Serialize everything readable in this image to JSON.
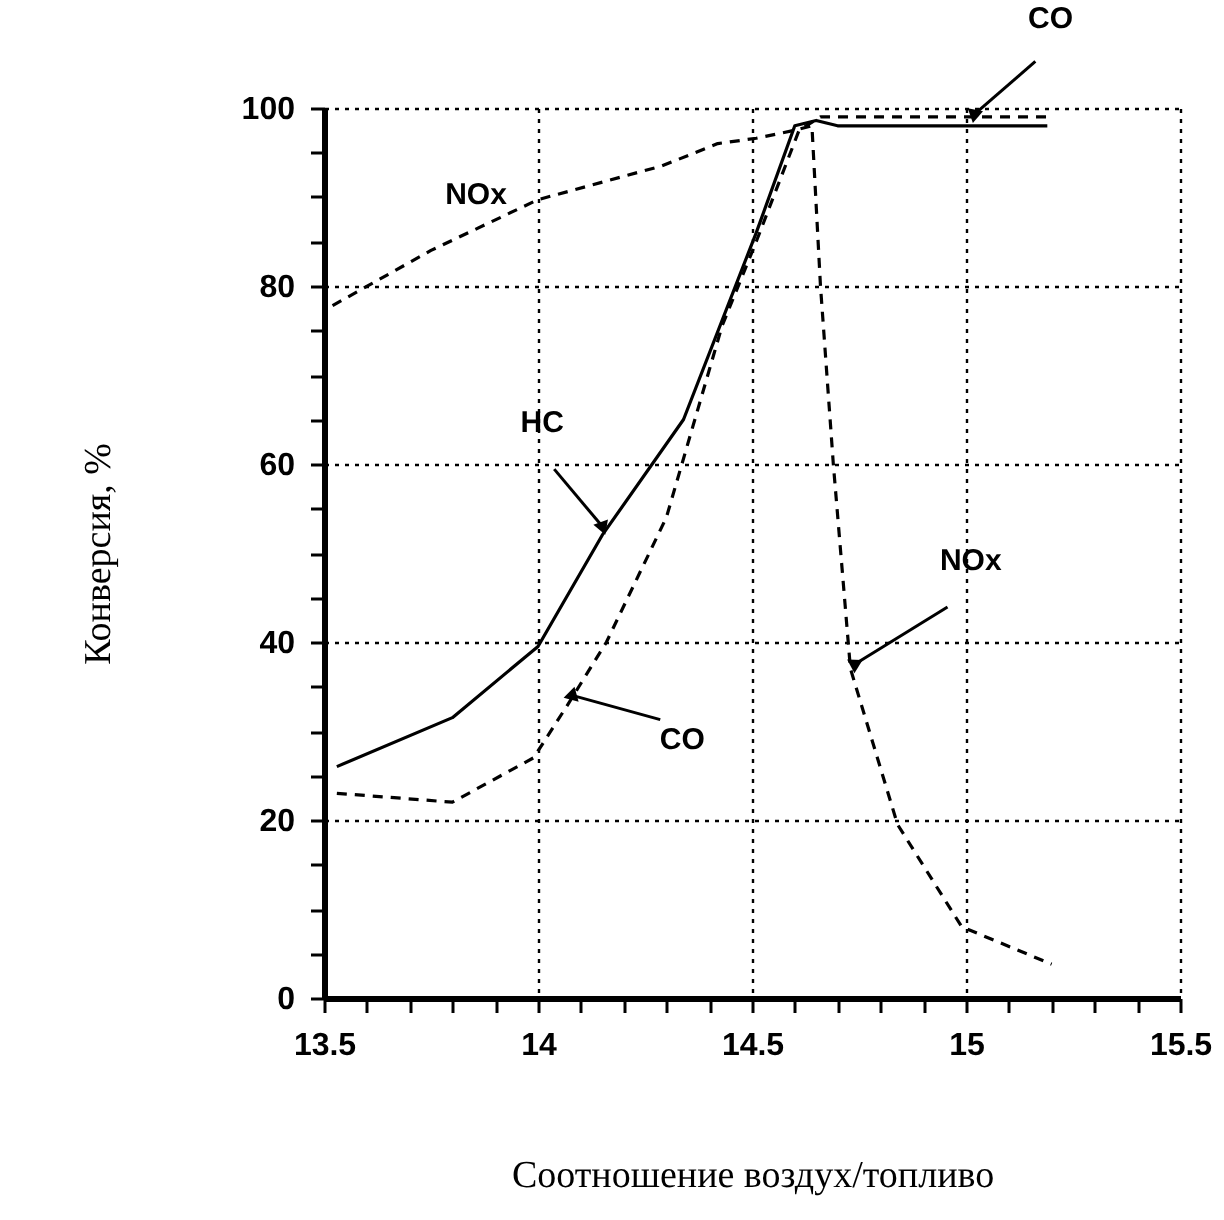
{
  "chart_data": {
    "type": "line",
    "xlabel": "Соотношение воздух/топливо",
    "ylabel": "Конверсия, %",
    "xlim": [
      13.5,
      15.5
    ],
    "ylim": [
      0,
      100
    ],
    "xticks": [
      {
        "value": 13.5,
        "label": "13.5"
      },
      {
        "value": 13.6,
        "label": null
      },
      {
        "value": 13.7,
        "label": null
      },
      {
        "value": 13.8,
        "label": null
      },
      {
        "value": 13.9,
        "label": null
      },
      {
        "value": 14,
        "label": "14"
      },
      {
        "value": 14.1,
        "label": null
      },
      {
        "value": 14.2,
        "label": null
      },
      {
        "value": 14.3,
        "label": null
      },
      {
        "value": 14.4,
        "label": null
      },
      {
        "value": 14.5,
        "label": "14.5"
      },
      {
        "value": 14.6,
        "label": null
      },
      {
        "value": 14.7,
        "label": null
      },
      {
        "value": 14.8,
        "label": null
      },
      {
        "value": 14.9,
        "label": null
      },
      {
        "value": 15,
        "label": "15"
      },
      {
        "value": 15.1,
        "label": null
      },
      {
        "value": 15.2,
        "label": null
      },
      {
        "value": 15.3,
        "label": null
      },
      {
        "value": 15.4,
        "label": null
      },
      {
        "value": 15.5,
        "label": "15.5"
      }
    ],
    "yticks": [
      0,
      {
        "value": 5,
        "label": null
      },
      {
        "value": 10,
        "label": null
      },
      {
        "value": 15,
        "label": null
      },
      20,
      {
        "value": 25,
        "label": null
      },
      {
        "value": 30,
        "label": null
      },
      {
        "value": 35,
        "label": null
      },
      40,
      {
        "value": 45,
        "label": null
      },
      {
        "value": 50,
        "label": null
      },
      {
        "value": 55,
        "label": null
      },
      60,
      {
        "value": 65,
        "label": null
      },
      {
        "value": 70,
        "label": null
      },
      {
        "value": 75,
        "label": null
      },
      80,
      {
        "value": 85,
        "label": null
      },
      {
        "value": 90,
        "label": null
      },
      {
        "value": 95,
        "label": null
      },
      100
    ],
    "grid": true,
    "marker": "none",
    "series": [
      {
        "color": "#000000",
        "line_style": "solid",
        "x": [
          13.53,
          13.8,
          14.0,
          14.15,
          14.34,
          14.51,
          14.6,
          14.65,
          14.7,
          15.19
        ],
        "values": [
          26,
          31.5,
          39.5,
          52,
          65,
          86,
          98,
          98.6,
          98,
          98
        ]
      },
      {
        "color": "#000000",
        "line_style": "dashed",
        "x": [
          13.53,
          13.8,
          13.99,
          14.07,
          14.16,
          14.3,
          14.43,
          14.51,
          14.61,
          14.66,
          15.19
        ],
        "values": [
          23,
          22,
          27,
          33,
          40,
          54,
          75.5,
          85,
          97.5,
          99,
          99
        ]
      },
      {
        "color": "#000000",
        "line_style": "dashed",
        "x": [
          13.52,
          13.75,
          14.0,
          14.29,
          14.42,
          14.51,
          14.6,
          14.64,
          14.66,
          14.69,
          14.73,
          14.84,
          14.99,
          15.2
        ],
        "values": [
          77.8,
          84,
          89.7,
          93.5,
          96,
          96.6,
          97.5,
          98,
          80,
          60,
          37,
          19.5,
          8,
          3.8
        ]
      }
    ],
    "annotations": [
      "NOx",
      {
        "text": "HC",
        "x": 14.15,
        "y": 53
      },
      {
        "text": "CO",
        "x": 15.02,
        "y": 99.3
      },
      {
        "text": "CO",
        "x": 14.08,
        "y": 34
      },
      {
        "text": "NOx",
        "x": 14.74,
        "y": 37.5
      }
    ]
  }
}
